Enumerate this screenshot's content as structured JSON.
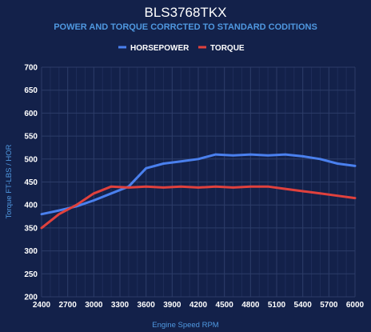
{
  "colors": {
    "background": "#13214a",
    "horsepower": "#4a80ee",
    "torque": "#e0413d",
    "grid": "#2c3c68",
    "accent_text": "#4f98e0"
  },
  "chart_data": {
    "type": "line",
    "title": "BLS3768TKX",
    "subtitle": "POWER AND TORQUE CORRCTED TO STANDARD CODITIONS",
    "xlabel": "Engine Speed RPM",
    "ylabel": "Torque FT-LBS / HOR",
    "xlim": [
      2400,
      6000
    ],
    "ylim": [
      200,
      700
    ],
    "x_ticks": [
      "2400",
      "2700",
      "3000",
      "3300",
      "3600",
      "3900",
      "4200",
      "4500",
      "4800",
      "5100",
      "5400",
      "5700",
      "6000"
    ],
    "y_ticks": [
      "200",
      "250",
      "300",
      "350",
      "400",
      "450",
      "500",
      "550",
      "600",
      "650",
      "700"
    ],
    "grid": true,
    "legend_position": "top-center",
    "series": [
      {
        "name": "HORSEPOWER",
        "color": "#4a80ee",
        "x": [
          2400,
          2600,
          2800,
          3000,
          3200,
          3400,
          3600,
          3800,
          4000,
          4200,
          4400,
          4600,
          4800,
          5000,
          5200,
          5400,
          5600,
          5800,
          6000
        ],
        "y": [
          380,
          388,
          397,
          410,
          425,
          440,
          480,
          490,
          495,
          500,
          510,
          508,
          510,
          508,
          510,
          506,
          500,
          490,
          485
        ]
      },
      {
        "name": "TORQUE",
        "color": "#e0413d",
        "x": [
          2400,
          2600,
          2800,
          3000,
          3200,
          3400,
          3600,
          3800,
          4000,
          4200,
          4400,
          4600,
          4800,
          5000,
          5200,
          5400,
          5600,
          5800,
          6000
        ],
        "y": [
          350,
          380,
          400,
          425,
          440,
          438,
          440,
          438,
          440,
          438,
          440,
          438,
          440,
          440,
          435,
          430,
          425,
          420,
          415
        ]
      }
    ]
  }
}
